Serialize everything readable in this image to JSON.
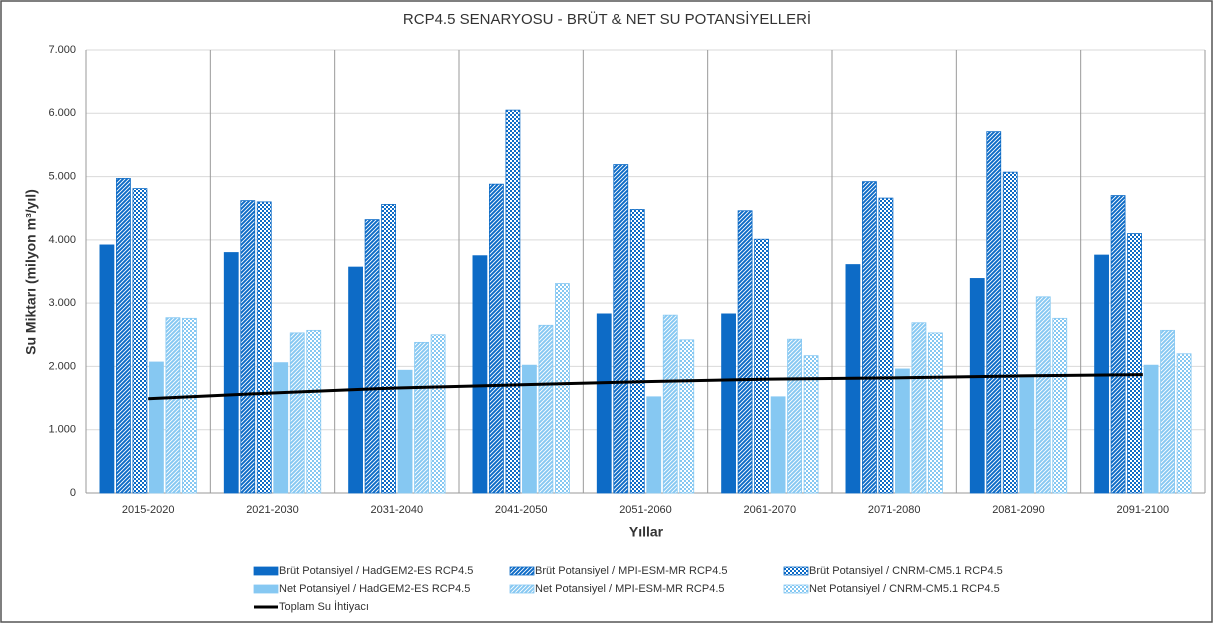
{
  "chart_data": {
    "type": "bar",
    "title": "RCP4.5 SENARYOSU - BRÜT & NET SU POTANSİYELLERİ",
    "x_label": "Yıllar",
    "y_label": "Su Miktarı (milyon m³/yıl)",
    "categories": [
      "2015-2020",
      "2021-2030",
      "2031-2040",
      "2041-2050",
      "2051-2060",
      "2061-2070",
      "2071-2080",
      "2081-2090",
      "2091-2100"
    ],
    "series": [
      {
        "name": "Brüt Potansiyel / HadGEM2-ES RCP4.5",
        "color": "#0d6bc6",
        "pattern": "solid",
        "values": [
          3920,
          3800,
          3570,
          3750,
          2830,
          2830,
          3610,
          3390,
          3760
        ]
      },
      {
        "name": "Brüt Potansiyel / MPI-ESM-MR RCP4.5",
        "color": "#0d6bc6",
        "pattern": "hatch",
        "values": [
          4970,
          4620,
          4320,
          4880,
          5190,
          4460,
          4920,
          5710,
          4700
        ]
      },
      {
        "name": "Brüt Potansiyel / CNRM-CM5.1 RCP4.5",
        "color": "#0d6bc6",
        "pattern": "dots",
        "values": [
          4810,
          4600,
          4560,
          6050,
          4480,
          4010,
          4660,
          5070,
          4100
        ]
      },
      {
        "name": "Net Potansiyel / HadGEM2-ES RCP4.5",
        "color": "#86c8f2",
        "pattern": "solid",
        "values": [
          2070,
          2060,
          1940,
          2020,
          1520,
          1520,
          1960,
          1840,
          2020
        ]
      },
      {
        "name": "Net Potansiyel / MPI-ESM-MR RCP4.5",
        "color": "#86c8f2",
        "pattern": "hatch",
        "values": [
          2770,
          2530,
          2380,
          2650,
          2810,
          2430,
          2690,
          3100,
          2570
        ]
      },
      {
        "name": "Net Potansiyel / CNRM-CM5.1 RCP4.5",
        "color": "#86c8f2",
        "pattern": "dots",
        "values": [
          2760,
          2570,
          2500,
          3310,
          2420,
          2170,
          2530,
          2760,
          2200
        ]
      },
      {
        "name": "Toplam Su İhtiyacı",
        "color": "#000000",
        "type": "line",
        "values": [
          1490,
          1580,
          1660,
          1710,
          1760,
          1800,
          1820,
          1850,
          1870
        ]
      }
    ],
    "ylim": [
      0,
      7000
    ],
    "yticks": [
      0,
      {
        "value": 1000,
        "label": "1.000"
      },
      {
        "value": 2000,
        "label": "2.000"
      },
      {
        "value": 3000,
        "label": "3.000"
      },
      {
        "value": 4000,
        "label": "4.000"
      },
      {
        "value": 5000,
        "label": "5.000"
      },
      {
        "value": 6000,
        "label": "6.000"
      },
      {
        "value": 7000,
        "label": "7.000"
      }
    ],
    "grid": true,
    "legend": "bottom"
  }
}
